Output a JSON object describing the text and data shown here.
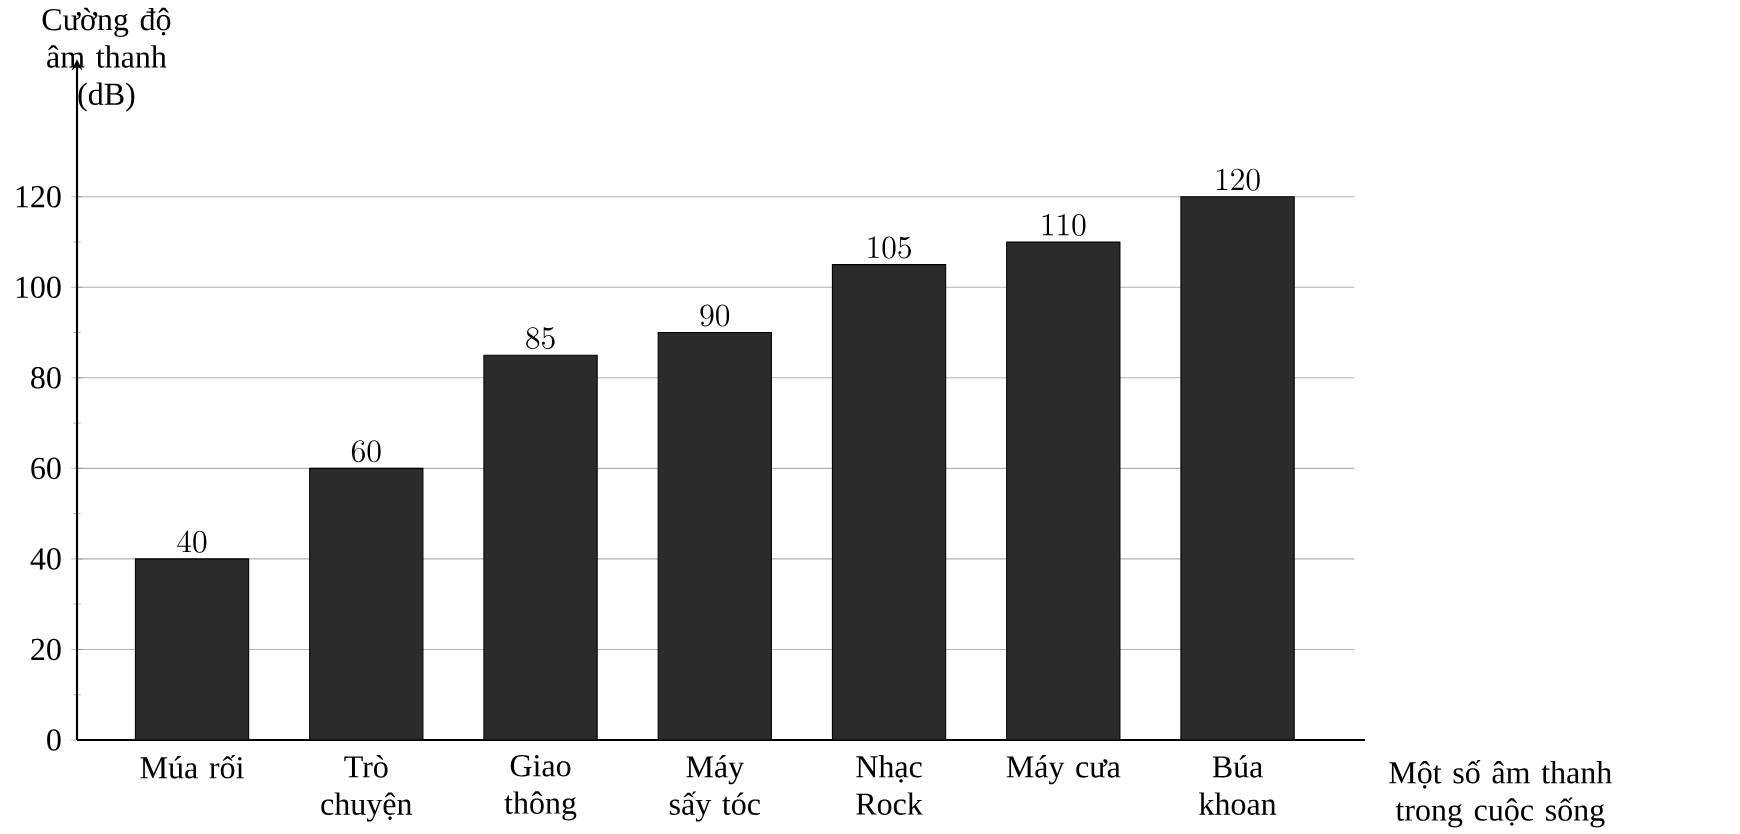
{
  "chart_data": {
    "type": "bar",
    "ylabel": "Cường độ âm thanh (dB)",
    "xlabel": "Một số âm thanh trong cuộc sống",
    "categories": [
      "Múa rối",
      "Trò chuyện",
      "Giao thông",
      "Máy sấy tóc",
      "Nhạc Rock",
      "Máy cưa",
      "Búa khoan"
    ],
    "values": [
      40,
      60,
      85,
      90,
      105,
      110,
      120
    ],
    "color": "#2b2b2b",
    "data_labels": true,
    "grid": "y",
    "ylim": [
      0,
      148
    ],
    "yticks": [
      0,
      20,
      40,
      60,
      80,
      100,
      120
    ]
  }
}
